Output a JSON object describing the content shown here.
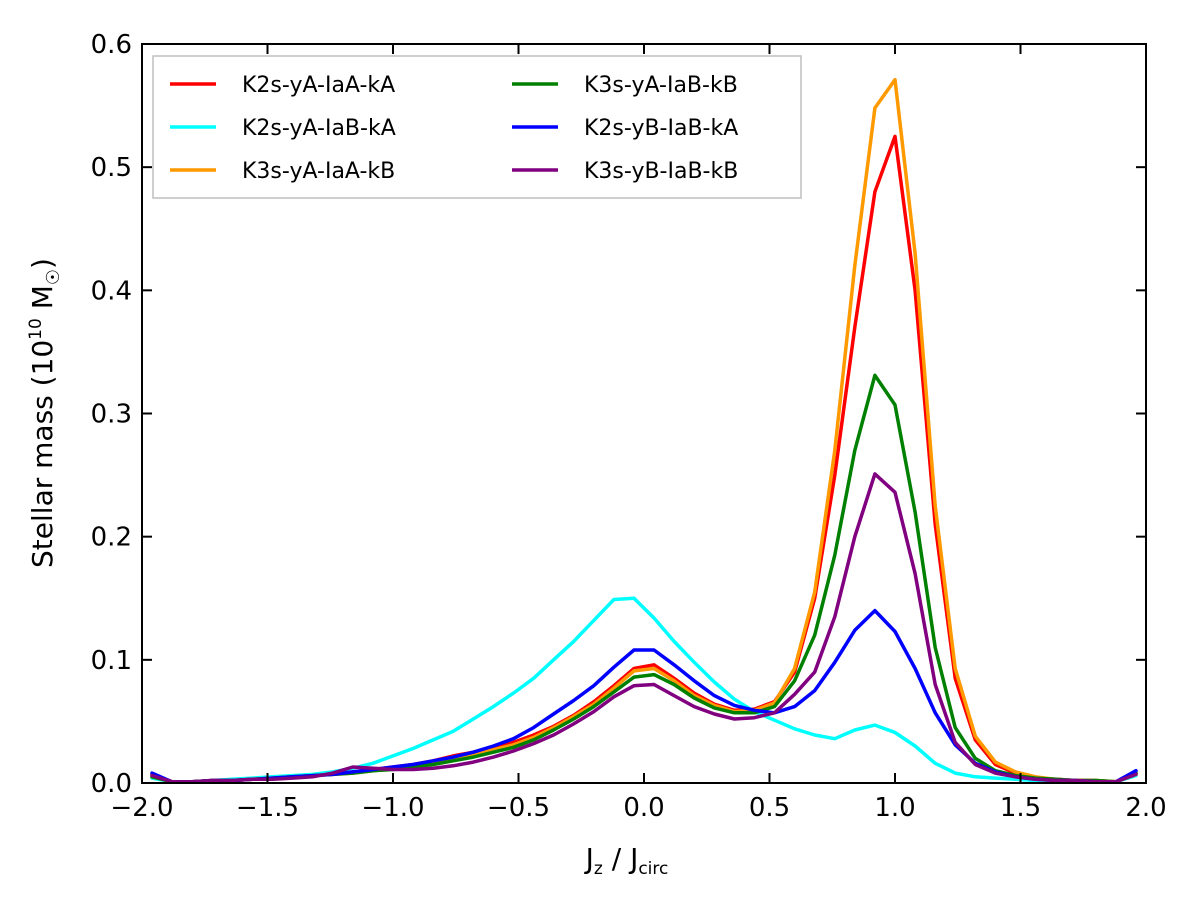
{
  "chart_data": {
    "type": "line",
    "title": "",
    "xlabel": {
      "main": "J",
      "sub1": "z",
      "mid": " / J",
      "sub2": "circ"
    },
    "ylabel": {
      "main": "Stellar mass (10",
      "sup": "10",
      "unit": " M",
      "sub": "☉",
      "close": ")"
    },
    "xlim": [
      -2.0,
      2.0
    ],
    "ylim": [
      0.0,
      0.6
    ],
    "xticks": [
      -2.0,
      -1.5,
      -1.0,
      -0.5,
      0.0,
      0.5,
      1.0,
      1.5,
      2.0
    ],
    "xtick_labels": [
      "−2.0",
      "−1.5",
      "−1.0",
      "−0.5",
      "0.0",
      "0.5",
      "1.0",
      "1.5",
      "2.0"
    ],
    "yticks": [
      0.0,
      0.1,
      0.2,
      0.3,
      0.4,
      0.5,
      0.6
    ],
    "ytick_labels": [
      "0.0",
      "0.1",
      "0.2",
      "0.3",
      "0.4",
      "0.5",
      "0.6"
    ],
    "legend_position": "top-left",
    "x": [
      -1.96,
      -1.88,
      -1.8,
      -1.72,
      -1.64,
      -1.56,
      -1.48,
      -1.4,
      -1.32,
      -1.24,
      -1.16,
      -1.08,
      -1.0,
      -0.92,
      -0.84,
      -0.76,
      -0.68,
      -0.6,
      -0.52,
      -0.44,
      -0.36,
      -0.28,
      -0.2,
      -0.12,
      -0.04,
      0.04,
      0.12,
      0.2,
      0.28,
      0.36,
      0.44,
      0.52,
      0.6,
      0.68,
      0.76,
      0.84,
      0.92,
      1.0,
      1.08,
      1.16,
      1.24,
      1.32,
      1.4,
      1.48,
      1.56,
      1.64,
      1.72,
      1.8,
      1.88,
      1.96
    ],
    "series": [
      {
        "name": "K2s-yA-IaA-kA",
        "color": "#ff0000",
        "values": [
          0.007,
          0.001,
          0.001,
          0.002,
          0.002,
          0.003,
          0.004,
          0.005,
          0.006,
          0.008,
          0.009,
          0.011,
          0.013,
          0.015,
          0.018,
          0.022,
          0.025,
          0.029,
          0.033,
          0.039,
          0.046,
          0.055,
          0.066,
          0.079,
          0.093,
          0.096,
          0.085,
          0.073,
          0.064,
          0.059,
          0.06,
          0.066,
          0.09,
          0.15,
          0.25,
          0.37,
          0.48,
          0.525,
          0.4,
          0.21,
          0.085,
          0.035,
          0.015,
          0.008,
          0.004,
          0.003,
          0.002,
          0.002,
          0.001,
          0.008
        ]
      },
      {
        "name": "K2s-yA-IaB-kA",
        "color": "#00ffff",
        "values": [
          0.004,
          0.001,
          0.001,
          0.002,
          0.003,
          0.004,
          0.005,
          0.006,
          0.007,
          0.009,
          0.012,
          0.016,
          0.022,
          0.028,
          0.035,
          0.042,
          0.052,
          0.062,
          0.073,
          0.085,
          0.1,
          0.115,
          0.132,
          0.149,
          0.15,
          0.134,
          0.115,
          0.098,
          0.082,
          0.068,
          0.058,
          0.051,
          0.044,
          0.039,
          0.036,
          0.043,
          0.047,
          0.041,
          0.03,
          0.016,
          0.008,
          0.005,
          0.004,
          0.003,
          0.002,
          0.002,
          0.001,
          0.001,
          0.001,
          0.006
        ]
      },
      {
        "name": "K3s-yA-IaA-kB",
        "color": "#ff9900",
        "values": [
          0.005,
          0.001,
          0.001,
          0.002,
          0.002,
          0.003,
          0.004,
          0.005,
          0.006,
          0.007,
          0.008,
          0.01,
          0.012,
          0.014,
          0.017,
          0.02,
          0.023,
          0.027,
          0.031,
          0.037,
          0.045,
          0.054,
          0.064,
          0.077,
          0.091,
          0.093,
          0.083,
          0.071,
          0.063,
          0.058,
          0.059,
          0.065,
          0.093,
          0.155,
          0.27,
          0.42,
          0.548,
          0.571,
          0.43,
          0.225,
          0.093,
          0.038,
          0.017,
          0.009,
          0.005,
          0.003,
          0.002,
          0.002,
          0.001,
          0.007
        ]
      },
      {
        "name": "K3s-yA-IaB-kB",
        "color": "#008000",
        "values": [
          0.005,
          0.001,
          0.001,
          0.002,
          0.002,
          0.003,
          0.004,
          0.005,
          0.006,
          0.007,
          0.008,
          0.01,
          0.011,
          0.013,
          0.015,
          0.018,
          0.021,
          0.025,
          0.029,
          0.035,
          0.043,
          0.052,
          0.062,
          0.074,
          0.086,
          0.088,
          0.08,
          0.069,
          0.061,
          0.057,
          0.057,
          0.062,
          0.083,
          0.12,
          0.185,
          0.27,
          0.331,
          0.307,
          0.22,
          0.11,
          0.045,
          0.02,
          0.01,
          0.006,
          0.004,
          0.003,
          0.002,
          0.002,
          0.001,
          0.008
        ]
      },
      {
        "name": "K2s-yB-IaB-kA",
        "color": "#0000ff",
        "values": [
          0.008,
          0.001,
          0.001,
          0.002,
          0.002,
          0.003,
          0.004,
          0.005,
          0.006,
          0.007,
          0.009,
          0.011,
          0.013,
          0.015,
          0.018,
          0.021,
          0.025,
          0.03,
          0.036,
          0.045,
          0.056,
          0.067,
          0.079,
          0.094,
          0.108,
          0.108,
          0.096,
          0.083,
          0.071,
          0.063,
          0.059,
          0.057,
          0.062,
          0.075,
          0.098,
          0.124,
          0.14,
          0.123,
          0.093,
          0.057,
          0.031,
          0.016,
          0.009,
          0.005,
          0.003,
          0.002,
          0.002,
          0.001,
          0.001,
          0.01
        ]
      },
      {
        "name": "K3s-yB-IaB-kB",
        "color": "#800080",
        "values": [
          0.006,
          0.001,
          0.001,
          0.002,
          0.002,
          0.003,
          0.003,
          0.004,
          0.005,
          0.008,
          0.013,
          0.012,
          0.011,
          0.011,
          0.012,
          0.014,
          0.017,
          0.021,
          0.026,
          0.032,
          0.039,
          0.048,
          0.058,
          0.07,
          0.079,
          0.08,
          0.071,
          0.062,
          0.056,
          0.052,
          0.053,
          0.057,
          0.072,
          0.09,
          0.135,
          0.2,
          0.251,
          0.236,
          0.17,
          0.08,
          0.033,
          0.015,
          0.008,
          0.005,
          0.003,
          0.002,
          0.002,
          0.001,
          0.001,
          0.007
        ]
      }
    ]
  }
}
